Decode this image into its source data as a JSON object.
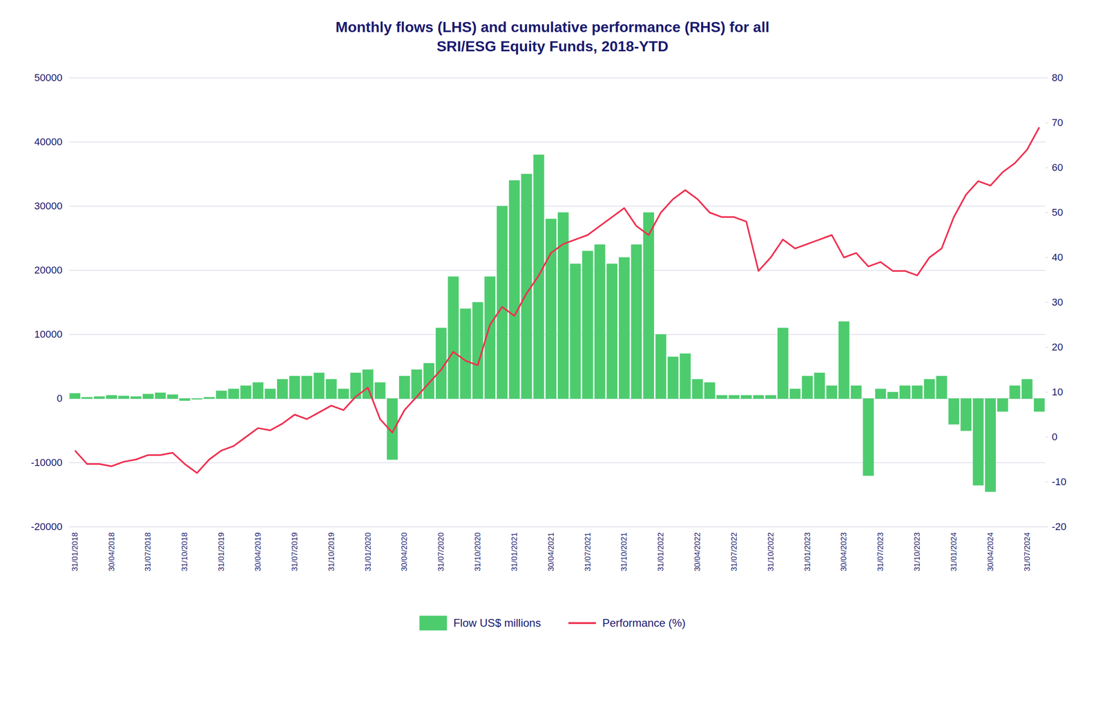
{
  "chart_data": {
    "type": "bar",
    "title": "Monthly flows (LHS) and cumulative performance (RHS) for all\nSRI/ESG Equity Funds, 2018-YTD",
    "categories": [
      "31/01/2018",
      null,
      null,
      "30/04/2018",
      null,
      null,
      "31/07/2018",
      null,
      null,
      "31/10/2018",
      null,
      null,
      "31/01/2019",
      null,
      null,
      "30/04/2019",
      null,
      null,
      "31/07/2019",
      null,
      null,
      "31/10/2019",
      null,
      null,
      "31/01/2020",
      null,
      null,
      "30/04/2020",
      null,
      null,
      "31/07/2020",
      null,
      null,
      "31/10/2020",
      null,
      null,
      "31/01/2021",
      null,
      null,
      "30/04/2021",
      null,
      null,
      "31/07/2021",
      null,
      null,
      "31/10/2021",
      null,
      null,
      "31/01/2022",
      null,
      null,
      "30/04/2022",
      null,
      null,
      "31/07/2022",
      null,
      null,
      "31/10/2022",
      null,
      null,
      "31/01/2023",
      null,
      null,
      "30/04/2023",
      null,
      null,
      "31/07/2023",
      null,
      null,
      "31/10/2023",
      null,
      null,
      "31/01/2024",
      null,
      null,
      "30/04/2024",
      null,
      null,
      "31/07/2024",
      null
    ],
    "series": [
      {
        "name": "Flow US$ millions",
        "type": "bar",
        "color": "#4dcc6e",
        "values": [
          800,
          200,
          300,
          500,
          400,
          300,
          700,
          900,
          600,
          -300,
          -100,
          200,
          1200,
          1500,
          2000,
          2500,
          1500,
          3000,
          3500,
          3500,
          4000,
          3000,
          1500,
          4000,
          4500,
          2500,
          -9500,
          3500,
          4500,
          5500,
          11000,
          19000,
          14000,
          15000,
          19000,
          30000,
          34000,
          35000,
          38000,
          28000,
          29000,
          21000,
          23000,
          24000,
          21000,
          22000,
          24000,
          29000,
          10000,
          6500,
          7000,
          3000,
          2500,
          500,
          500,
          500,
          500,
          500,
          11000,
          1500,
          3500,
          4000,
          2000,
          12000,
          2000,
          -12000,
          1500,
          1000,
          2000,
          2000,
          3000,
          3500,
          -4000,
          -5000,
          -13500,
          -14500,
          -2000,
          2000,
          3000,
          -2000
        ]
      },
      {
        "name": "Performance (%)",
        "type": "line",
        "color": "#f03050",
        "axis": "y2",
        "values": [
          -3,
          -6,
          -6,
          -6.5,
          -5.5,
          -5,
          -4,
          -4,
          -3.5,
          -6,
          -8,
          -5,
          -3,
          -2,
          0,
          2,
          1.5,
          3,
          5,
          4,
          5.5,
          7,
          6,
          9,
          11,
          4,
          1,
          6,
          9,
          12,
          15,
          19,
          17,
          16,
          25,
          29,
          27,
          32,
          36,
          41,
          43,
          44,
          45,
          47,
          49,
          51,
          47,
          45,
          50,
          53,
          55,
          53,
          50,
          49,
          49,
          48,
          37,
          40,
          44,
          42,
          43,
          44,
          45,
          40,
          41,
          38,
          39,
          37,
          37,
          36,
          40,
          42,
          49,
          54,
          57,
          56,
          59,
          61,
          64,
          69
        ]
      }
    ],
    "ylim": [
      -20000,
      50000
    ],
    "yticks": [
      -20000,
      -10000,
      0,
      10000,
      20000,
      30000,
      40000,
      50000
    ],
    "y2lim": [
      -20,
      80
    ],
    "y2ticks": [
      -20,
      -10,
      0,
      10,
      20,
      30,
      40,
      50,
      60,
      70,
      80
    ],
    "grid": true,
    "legend": "bottom"
  }
}
